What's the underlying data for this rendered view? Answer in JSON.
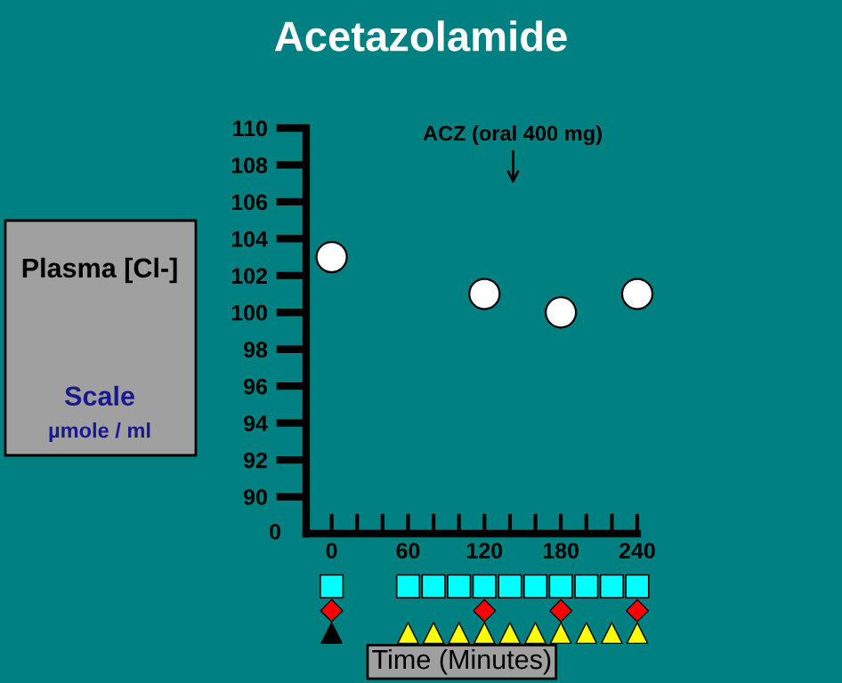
{
  "chart_data": {
    "type": "scatter",
    "title": "Acetazolamide",
    "xlabel": "Time (Minutes)",
    "ylabel": "Plasma [Cl-]",
    "annotations": [
      "ACZ (oral 400 mg)",
      "Scale",
      "µmole / ml",
      "0"
    ],
    "x": [
      0,
      120,
      180,
      240
    ],
    "series": [
      {
        "color": "#ffffff",
        "values": [
          103,
          101,
          100,
          101
        ]
      }
    ],
    "marker": "circle",
    "grid": false,
    "legend": false,
    "xlim": [
      -20,
      240
    ],
    "xticks": [
      {
        "value": 0,
        "label": "0"
      },
      {
        "value": 20,
        "label": null
      },
      {
        "value": 40,
        "label": null
      },
      {
        "value": 60,
        "label": "60"
      },
      {
        "value": 80,
        "label": null
      },
      {
        "value": 100,
        "label": null
      },
      {
        "value": 120,
        "label": "120"
      },
      {
        "value": 140,
        "label": null
      },
      {
        "value": 160,
        "label": null
      },
      {
        "value": 180,
        "label": "180"
      },
      {
        "value": 200,
        "label": null
      },
      {
        "value": 220,
        "label": null
      },
      {
        "value": 240,
        "label": "240"
      }
    ],
    "ylim": [
      88,
      110
    ],
    "yticks": [
      90,
      92,
      94,
      96,
      98,
      100,
      102,
      104,
      106,
      108,
      110
    ]
  }
}
